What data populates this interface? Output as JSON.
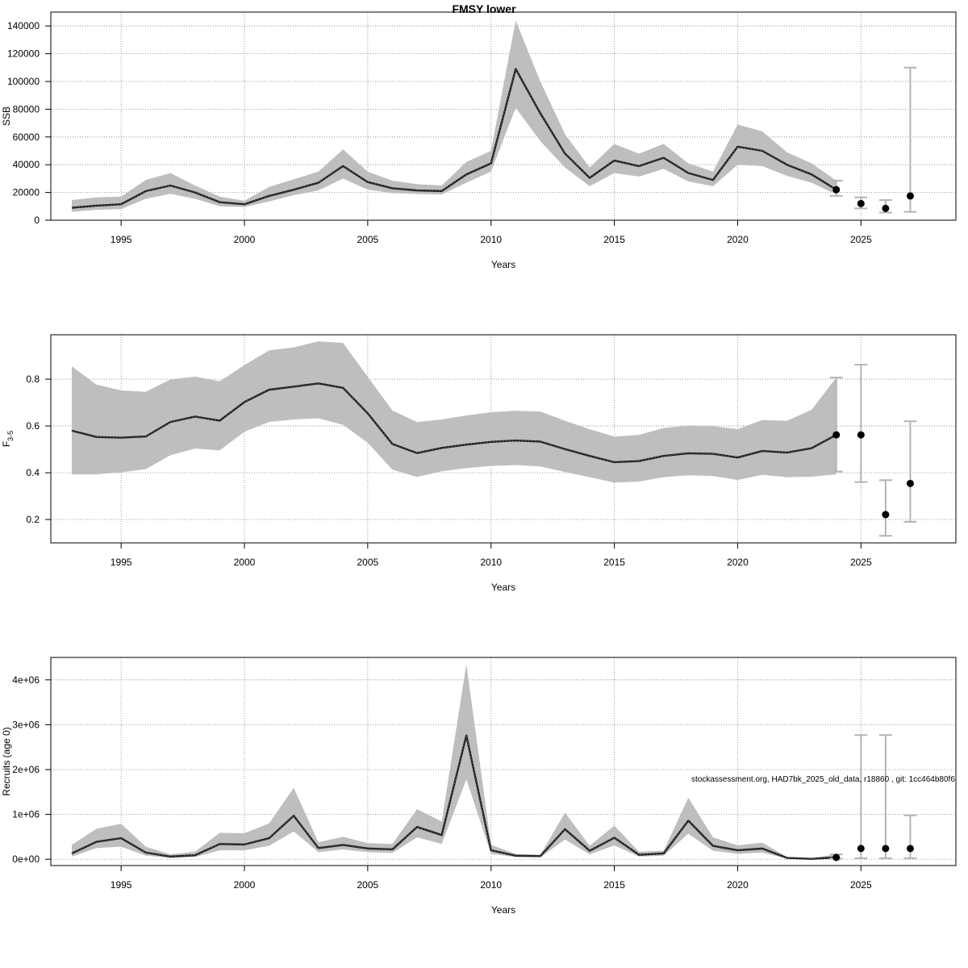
{
  "main_title": "FMSY lower",
  "footnote": "stockassessment.org, HAD7bk_2025_old_data, r18860 , git: 1cc464b80f6",
  "colors": {
    "band": "#bebebe",
    "line": "#1a1a1a",
    "grid": "#7f7f7f",
    "errorbar": "#b4b4b4",
    "point": "#000000"
  },
  "chart_data": [
    {
      "type": "line",
      "title": "",
      "xlabel": "Years",
      "ylabel": "SSB",
      "xlim": [
        1992.15,
        2028.85
      ],
      "ylim": [
        0,
        150000
      ],
      "x_ticks": [
        1995,
        2000,
        2005,
        2010,
        2015,
        2020,
        2025
      ],
      "x_tick_labels": [
        "1995",
        "2000",
        "2005",
        "2010",
        "2015",
        "2020",
        "2025"
      ],
      "y_ticks": [
        0,
        20000,
        40000,
        60000,
        80000,
        100000,
        120000,
        140000
      ],
      "y_tick_labels": [
        "0",
        "20000",
        "40000",
        "60000",
        "80000",
        "100000",
        "120000",
        "140000"
      ],
      "grid": true,
      "series": [
        {
          "x": [
            1993,
            1994,
            1995,
            1996,
            1997,
            1998,
            1999,
            2000,
            2001,
            2002,
            2003,
            2004,
            2005,
            2006,
            2007,
            2008,
            2009,
            2010,
            2011,
            2012,
            2013,
            2014,
            2015,
            2016,
            2017,
            2018,
            2019,
            2020,
            2021,
            2022,
            2023,
            2024
          ],
          "values": [
            9000,
            10500,
            11500,
            21000,
            25000,
            20000,
            13000,
            11500,
            17500,
            22000,
            27000,
            39000,
            27500,
            23000,
            21500,
            21000,
            33000,
            41000,
            109000,
            77000,
            48000,
            30500,
            43000,
            39000,
            45000,
            34000,
            29000,
            53000,
            50000,
            40000,
            33000,
            22000
          ],
          "lower": [
            6000,
            7500,
            8000,
            15500,
            19000,
            15500,
            10000,
            9500,
            13500,
            18000,
            21500,
            30000,
            22000,
            19500,
            19000,
            18500,
            27000,
            35000,
            81000,
            57000,
            38000,
            24500,
            34000,
            31500,
            37000,
            28000,
            24500,
            40000,
            39000,
            32000,
            27000,
            18500
          ],
          "upper": [
            14500,
            16500,
            17000,
            29000,
            34000,
            25000,
            17000,
            14000,
            24000,
            29500,
            35000,
            51000,
            35000,
            28500,
            26000,
            25000,
            42000,
            50000,
            144000,
            100000,
            62000,
            38000,
            55000,
            48000,
            55000,
            41000,
            35000,
            69000,
            64000,
            49000,
            41000,
            28500
          ]
        }
      ],
      "forecast": {
        "x": [
          2024,
          2025,
          2026,
          2027
        ],
        "values": [
          22000,
          12000,
          8500,
          17500
        ],
        "lower": [
          17500,
          8500,
          5500,
          6000
        ],
        "upper": [
          28500,
          16500,
          14500,
          110000
        ]
      }
    },
    {
      "type": "line",
      "title": "",
      "xlabel": "Years",
      "ylabel": "F",
      "ylabel_subscript": "3-5",
      "xlim": [
        1992.15,
        2028.85
      ],
      "ylim": [
        0.1,
        0.99
      ],
      "x_ticks": [
        1995,
        2000,
        2005,
        2010,
        2015,
        2020,
        2025
      ],
      "x_tick_labels": [
        "1995",
        "2000",
        "2005",
        "2010",
        "2015",
        "2020",
        "2025"
      ],
      "y_ticks": [
        0.2,
        0.4,
        0.6,
        0.8
      ],
      "y_tick_labels": [
        "0.2",
        "0.4",
        "0.6",
        "0.8"
      ],
      "grid": true,
      "series": [
        {
          "x": [
            1993,
            1994,
            1995,
            1996,
            1997,
            1998,
            1999,
            2000,
            2001,
            2002,
            2003,
            2004,
            2005,
            2006,
            2007,
            2008,
            2009,
            2010,
            2011,
            2012,
            2013,
            2014,
            2015,
            2016,
            2017,
            2018,
            2019,
            2020,
            2021,
            2022,
            2023,
            2024
          ],
          "values": [
            0.58,
            0.553,
            0.55,
            0.555,
            0.617,
            0.64,
            0.623,
            0.702,
            0.755,
            0.768,
            0.782,
            0.763,
            0.654,
            0.523,
            0.484,
            0.506,
            0.52,
            0.532,
            0.538,
            0.533,
            0.501,
            0.472,
            0.445,
            0.45,
            0.472,
            0.483,
            0.481,
            0.465,
            0.493,
            0.486,
            0.505,
            0.562
          ],
          "lower": [
            0.393,
            0.393,
            0.402,
            0.415,
            0.475,
            0.503,
            0.496,
            0.575,
            0.617,
            0.628,
            0.633,
            0.605,
            0.528,
            0.413,
            0.382,
            0.406,
            0.42,
            0.429,
            0.433,
            0.427,
            0.403,
            0.381,
            0.358,
            0.362,
            0.381,
            0.389,
            0.386,
            0.369,
            0.391,
            0.381,
            0.383,
            0.393
          ],
          "upper": [
            0.855,
            0.777,
            0.752,
            0.746,
            0.799,
            0.811,
            0.791,
            0.86,
            0.923,
            0.936,
            0.962,
            0.955,
            0.81,
            0.666,
            0.617,
            0.628,
            0.645,
            0.659,
            0.665,
            0.662,
            0.622,
            0.586,
            0.555,
            0.562,
            0.591,
            0.602,
            0.599,
            0.587,
            0.625,
            0.622,
            0.669,
            0.807
          ]
        }
      ],
      "forecast": {
        "x": [
          2024,
          2025,
          2026,
          2027
        ],
        "values": [
          0.562,
          0.562,
          0.221,
          0.354
        ],
        "lower": [
          0.405,
          0.36,
          0.13,
          0.19
        ],
        "upper": [
          0.807,
          0.862,
          0.368,
          0.62
        ]
      }
    },
    {
      "type": "line",
      "title": "",
      "xlabel": "Years",
      "ylabel": "Recruits (age 0)",
      "xlim": [
        1992.15,
        2028.85
      ],
      "ylim": [
        -140000,
        4500000
      ],
      "x_ticks": [
        1995,
        2000,
        2005,
        2010,
        2015,
        2020,
        2025
      ],
      "x_tick_labels": [
        "1995",
        "2000",
        "2005",
        "2010",
        "2015",
        "2020",
        "2025"
      ],
      "y_ticks": [
        0,
        1000000,
        2000000,
        3000000,
        4000000
      ],
      "y_tick_labels": [
        "0e+00",
        "1e+06",
        "2e+06",
        "3e+06",
        "4e+06"
      ],
      "grid": true,
      "series": [
        {
          "x": [
            1993,
            1994,
            1995,
            1996,
            1997,
            1998,
            1999,
            2000,
            2001,
            2002,
            2003,
            2004,
            2005,
            2006,
            2007,
            2008,
            2009,
            2010,
            2011,
            2012,
            2013,
            2014,
            2015,
            2016,
            2017,
            2018,
            2019,
            2020,
            2021,
            2022,
            2023,
            2024
          ],
          "values": [
            130000,
            390000,
            470000,
            150000,
            60000,
            90000,
            340000,
            330000,
            470000,
            970000,
            250000,
            320000,
            240000,
            220000,
            720000,
            540000,
            2760000,
            200000,
            80000,
            70000,
            670000,
            190000,
            480000,
            100000,
            130000,
            860000,
            300000,
            200000,
            240000,
            30000,
            10000,
            40000
          ],
          "lower": [
            60000,
            250000,
            280000,
            80000,
            30000,
            50000,
            200000,
            200000,
            300000,
            620000,
            160000,
            220000,
            160000,
            140000,
            490000,
            340000,
            1780000,
            120000,
            50000,
            45000,
            440000,
            110000,
            310000,
            60000,
            80000,
            570000,
            190000,
            120000,
            150000,
            15000,
            5000,
            15000
          ],
          "upper": [
            320000,
            680000,
            790000,
            280000,
            110000,
            170000,
            590000,
            580000,
            800000,
            1590000,
            380000,
            500000,
            360000,
            340000,
            1120000,
            840000,
            4350000,
            320000,
            120000,
            100000,
            1040000,
            300000,
            750000,
            170000,
            190000,
            1370000,
            490000,
            310000,
            370000,
            50000,
            25000,
            110000
          ]
        }
      ],
      "forecast": {
        "x": [
          2024,
          2025,
          2026,
          2027
        ],
        "values": [
          40000,
          240000,
          240000,
          240000
        ],
        "lower": [
          15000,
          25000,
          25000,
          25000
        ],
        "upper": [
          110000,
          2770000,
          2770000,
          980000
        ]
      }
    }
  ]
}
